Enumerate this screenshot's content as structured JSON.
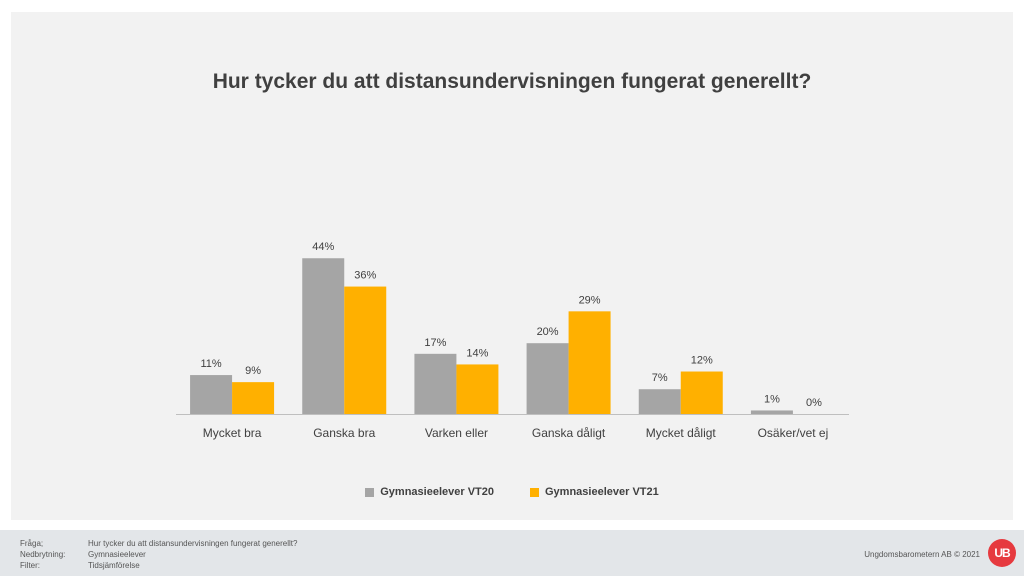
{
  "chart_data": {
    "type": "bar",
    "title": "Hur tycker du att distansundervisningen fungerat generellt?",
    "categories": [
      "Mycket bra",
      "Ganska bra",
      "Varken eller",
      "Ganska dåligt",
      "Mycket dåligt",
      "Osäker/vet ej"
    ],
    "series": [
      {
        "name": "Gymnasieelever VT20",
        "color": "#a5a5a5",
        "values": [
          11,
          44,
          17,
          20,
          7,
          1
        ],
        "labels": [
          "11%",
          "44%",
          "17%",
          "20%",
          "7%",
          "1%"
        ]
      },
      {
        "name": "Gymnasieelever VT21",
        "color": "#ffb000",
        "values": [
          9,
          36,
          14,
          29,
          12,
          0
        ],
        "labels": [
          "9%",
          "36%",
          "14%",
          "29%",
          "12%",
          "0%"
        ]
      }
    ],
    "ylim": [
      0,
      50
    ],
    "unit": "%",
    "legend_position": "bottom",
    "grid": false
  },
  "footer": {
    "rows": [
      {
        "key": "Fråga;",
        "value": "Hur tycker du att distansundervisningen fungerat generellt?"
      },
      {
        "key": "Nedbrytning:",
        "value": "Gymnasieelever"
      },
      {
        "key": "Filter:",
        "value": "Tidsjämförelse"
      }
    ],
    "copyright": "Ungdomsbarometern AB © 2021",
    "logo_text": "UB"
  }
}
